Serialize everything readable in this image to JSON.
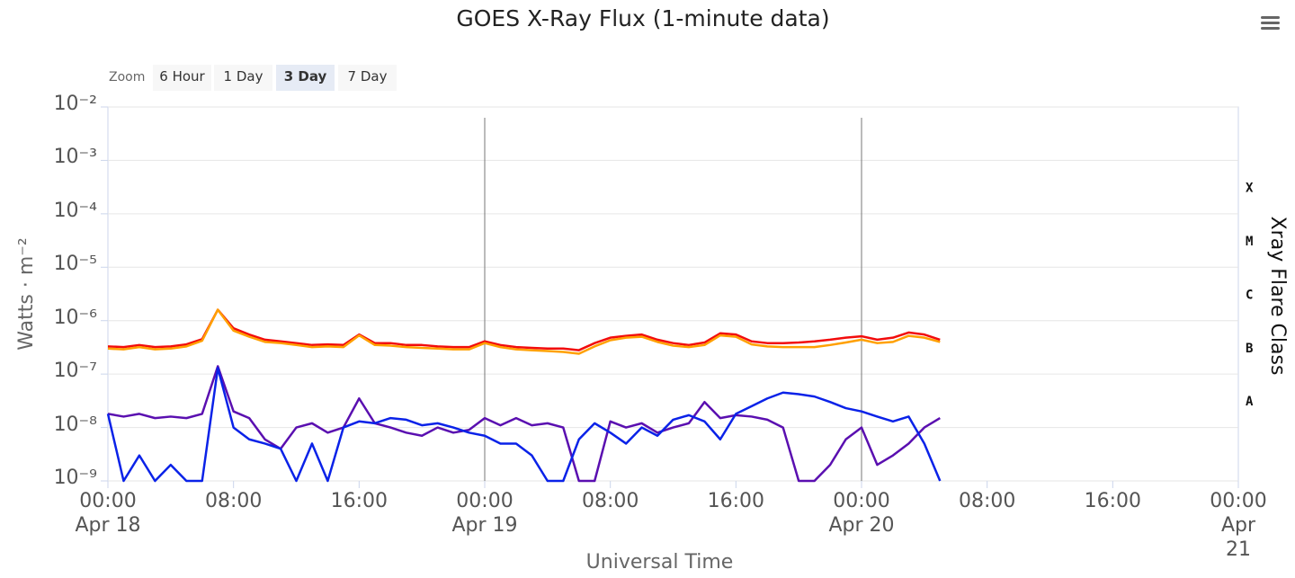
{
  "chart_data": {
    "type": "line",
    "title": "GOES X-Ray Flux (1-minute data)",
    "zoom": {
      "label": "Zoom",
      "buttons": [
        "6 Hour",
        "1 Day",
        "3 Day",
        "7 Day"
      ],
      "active": 2
    },
    "x_label": "Universal Time",
    "y_label": "Watts · m⁻²",
    "y2_label": "Xray Flare Class",
    "log_y": true,
    "grid": true,
    "xlim": [
      0,
      72
    ],
    "xticks": [
      {
        "value": 0,
        "label": "00:00\nApr 18"
      },
      {
        "value": 8,
        "label": "08:00"
      },
      {
        "value": 16,
        "label": "16:00"
      },
      {
        "value": 24,
        "label": "00:00\nApr 19"
      },
      {
        "value": 32,
        "label": "08:00"
      },
      {
        "value": 40,
        "label": "16:00"
      },
      {
        "value": 48,
        "label": "00:00\nApr 20"
      },
      {
        "value": 56,
        "label": "08:00"
      },
      {
        "value": 64,
        "label": "16:00"
      },
      {
        "value": 72,
        "label": "00:00\nApr 21"
      }
    ],
    "plot_lines": [
      24,
      48
    ],
    "ylim": [
      1e-09,
      0.01
    ],
    "yticks": [
      {
        "value": 1e-09,
        "label": "10⁻⁹"
      },
      {
        "value": 1e-08,
        "label": "10⁻⁸"
      },
      {
        "value": 1e-07,
        "label": "10⁻⁷"
      },
      {
        "value": 1e-06,
        "label": "10⁻⁶"
      },
      {
        "value": 1e-05,
        "label": "10⁻⁵"
      },
      {
        "value": 0.0001,
        "label": "10⁻⁴"
      },
      {
        "value": 0.001,
        "label": "10⁻³"
      },
      {
        "value": 0.01,
        "label": "10⁻²"
      }
    ],
    "y2lim": [
      1e-09,
      0.01
    ],
    "y2ticks": [
      {
        "value": 3e-08,
        "label": "A"
      },
      {
        "value": 3e-07,
        "label": "B"
      },
      {
        "value": 3e-06,
        "label": "C"
      },
      {
        "value": 3e-05,
        "label": "M"
      },
      {
        "value": 0.0003,
        "label": "X"
      }
    ],
    "x": [
      0,
      1,
      2,
      3,
      4,
      5,
      6,
      7,
      8,
      9,
      10,
      11,
      12,
      13,
      14,
      15,
      16,
      17,
      18,
      19,
      20,
      21,
      22,
      23,
      24,
      25,
      26,
      27,
      28,
      29,
      30,
      31,
      32,
      33,
      34,
      35,
      36,
      37,
      38,
      39,
      40,
      41,
      42,
      43,
      44,
      45,
      46,
      47,
      48,
      49,
      50,
      51,
      52,
      53
    ],
    "series": [
      {
        "color": "#5a0fb0",
        "values": [
          1.8e-08,
          1.6e-08,
          1.8e-08,
          1.5e-08,
          1.6e-08,
          1.5e-08,
          1.8e-08,
          1.4e-07,
          2e-08,
          1.5e-08,
          6e-09,
          4e-09,
          1e-08,
          1.2e-08,
          8e-09,
          1e-08,
          3.5e-08,
          1.2e-08,
          1e-08,
          8e-09,
          7e-09,
          1e-08,
          8e-09,
          9e-09,
          1.5e-08,
          1.1e-08,
          1.5e-08,
          1.1e-08,
          1.2e-08,
          1e-08,
          1e-09,
          1e-09,
          1.3e-08,
          1e-08,
          1.2e-08,
          8e-09,
          1e-08,
          1.2e-08,
          3e-08,
          1.5e-08,
          1.7e-08,
          1.6e-08,
          1.4e-08,
          1e-08,
          1e-09,
          1e-09,
          2e-09,
          6e-09,
          1e-08,
          2e-09,
          3e-09,
          5e-09,
          1e-08,
          1.5e-08
        ]
      },
      {
        "color": "#0a22e8",
        "values": [
          1.8e-08,
          1e-09,
          3e-09,
          1e-09,
          2e-09,
          1e-09,
          1e-09,
          1.3e-07,
          1e-08,
          6e-09,
          5e-09,
          4e-09,
          1e-09,
          5e-09,
          1e-09,
          1e-08,
          1.3e-08,
          1.2e-08,
          1.5e-08,
          1.4e-08,
          1.1e-08,
          1.2e-08,
          1e-08,
          8e-09,
          7e-09,
          5e-09,
          5e-09,
          3e-09,
          1e-09,
          1e-09,
          6e-09,
          1.2e-08,
          8e-09,
          5e-09,
          1e-08,
          7e-09,
          1.4e-08,
          1.7e-08,
          1.3e-08,
          6e-09,
          1.8e-08,
          2.5e-08,
          3.5e-08,
          4.5e-08,
          4.2e-08,
          3.8e-08,
          3e-08,
          2.3e-08,
          2e-08,
          1.6e-08,
          1.3e-08,
          1.6e-08,
          5e-09,
          1e-09
        ]
      },
      {
        "color": "#f20c0c",
        "values": [
          3.3e-07,
          3.2e-07,
          3.5e-07,
          3.2e-07,
          3.3e-07,
          3.6e-07,
          4.5e-07,
          1.6e-06,
          7.2e-07,
          5.5e-07,
          4.4e-07,
          4.1e-07,
          3.8e-07,
          3.5e-07,
          3.6e-07,
          3.5e-07,
          5.5e-07,
          3.8e-07,
          3.8e-07,
          3.5e-07,
          3.5e-07,
          3.3e-07,
          3.2e-07,
          3.2e-07,
          4.1e-07,
          3.5e-07,
          3.2e-07,
          3.1e-07,
          3e-07,
          3e-07,
          2.8e-07,
          3.8e-07,
          4.8e-07,
          5.2e-07,
          5.5e-07,
          4.4e-07,
          3.8e-07,
          3.5e-07,
          3.9e-07,
          5.8e-07,
          5.5e-07,
          4.1e-07,
          3.8e-07,
          3.8e-07,
          3.9e-07,
          4.1e-07,
          4.4e-07,
          4.8e-07,
          5.1e-07,
          4.4e-07,
          4.8e-07,
          6e-07,
          5.5e-07,
          4.4e-07
        ]
      },
      {
        "color": "#ffa000",
        "values": [
          3e-07,
          2.9e-07,
          3.2e-07,
          2.9e-07,
          3e-07,
          3.3e-07,
          4.2e-07,
          1.6e-06,
          6.5e-07,
          5e-07,
          4e-07,
          3.8e-07,
          3.5e-07,
          3.2e-07,
          3.3e-07,
          3.2e-07,
          5.3e-07,
          3.5e-07,
          3.4e-07,
          3.2e-07,
          3.1e-07,
          3e-07,
          2.9e-07,
          2.9e-07,
          3.8e-07,
          3.2e-07,
          2.9e-07,
          2.8e-07,
          2.7e-07,
          2.6e-07,
          2.4e-07,
          3.3e-07,
          4.3e-07,
          4.8e-07,
          5e-07,
          4e-07,
          3.4e-07,
          3.2e-07,
          3.5e-07,
          5.3e-07,
          5e-07,
          3.6e-07,
          3.3e-07,
          3.2e-07,
          3.2e-07,
          3.2e-07,
          3.5e-07,
          3.9e-07,
          4.4e-07,
          3.8e-07,
          4e-07,
          5.2e-07,
          4.8e-07,
          4e-07
        ]
      }
    ]
  }
}
